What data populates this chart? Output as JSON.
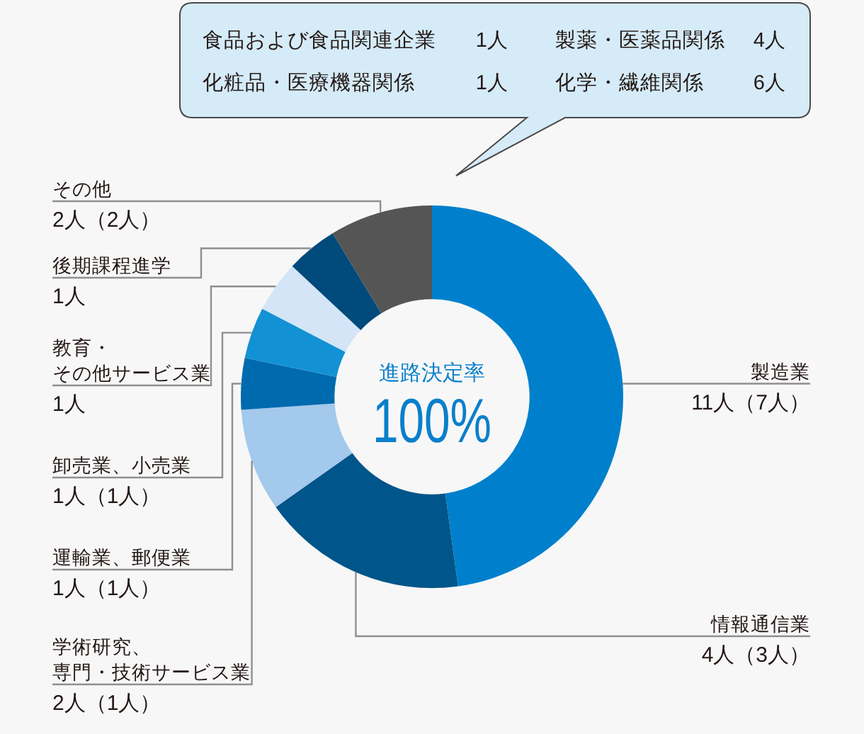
{
  "chart_data": {
    "type": "donut",
    "categories": [
      "製造業",
      "情報通信業",
      "学術研究、専門・技術サービス業",
      "運輸業、郵便業",
      "卸売業、小売業",
      "教育・その他サービス業",
      "後期課程進学",
      "その他"
    ],
    "values": [
      11,
      4,
      2,
      1,
      1,
      1,
      1,
      2
    ],
    "value_labels": [
      "11人（7人）",
      "4人（3人）",
      "2人（1人）",
      "1人（1人）",
      "1人（1人）",
      "1人",
      "1人",
      "2人（2人）"
    ],
    "colors": [
      "#0080cc",
      "#00558a",
      "#a3c9ec",
      "#006aae",
      "#1292d4",
      "#d3e5f6",
      "#004a7c",
      "#555555"
    ],
    "annotations": [
      "進路決定率",
      "100%",
      "食品および食品関連企業",
      "1人",
      "製薬・医薬品関係",
      "4人",
      "化粧品・医療機器関係",
      "1人",
      "化学・繊維関係",
      "6人"
    ]
  }
}
